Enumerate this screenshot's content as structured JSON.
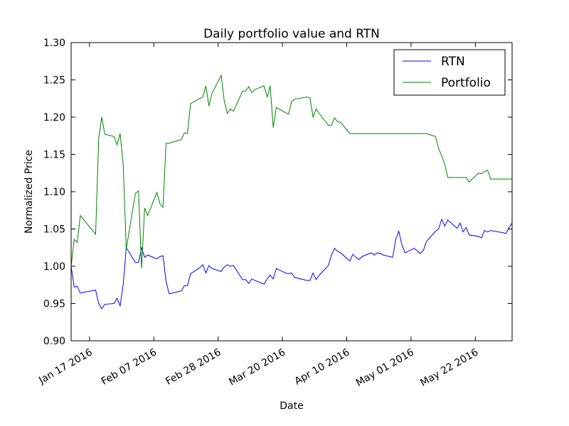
{
  "chart_data": {
    "type": "line",
    "title": "Daily portfolio value and RTN",
    "xlabel": "Date",
    "ylabel": "Normalized Price",
    "ylim": [
      0.9,
      1.3
    ],
    "xlim": [
      "2016-01-11",
      "2016-06-03"
    ],
    "yticks": [
      0.9,
      0.95,
      1.0,
      1.05,
      1.1,
      1.15,
      1.2,
      1.25,
      1.3
    ],
    "ytick_labels": [
      "0.90",
      "0.95",
      "1.00",
      "1.05",
      "1.10",
      "1.15",
      "1.20",
      "1.25",
      "1.30"
    ],
    "xticks": [
      "2016-01-17",
      "2016-02-07",
      "2016-02-28",
      "2016-03-20",
      "2016-04-10",
      "2016-05-01",
      "2016-05-22"
    ],
    "xtick_labels": [
      "Jan 17 2016",
      "Feb 07 2016",
      "Feb 28 2016",
      "Mar 20 2016",
      "Apr 10 2016",
      "May 01 2016",
      "May 22 2016"
    ],
    "grid": false,
    "legend_position": "top-right",
    "series": [
      {
        "name": "RTN",
        "color": "#0000ff",
        "x": [
          "2016-01-11",
          "2016-01-12",
          "2016-01-13",
          "2016-01-14",
          "2016-01-15",
          "2016-01-19",
          "2016-01-20",
          "2016-01-21",
          "2016-01-22",
          "2016-01-25",
          "2016-01-26",
          "2016-01-27",
          "2016-01-28",
          "2016-01-29",
          "2016-02-01",
          "2016-02-02",
          "2016-02-03",
          "2016-02-04",
          "2016-02-05",
          "2016-02-08",
          "2016-02-09",
          "2016-02-10",
          "2016-02-11",
          "2016-02-12",
          "2016-02-16",
          "2016-02-17",
          "2016-02-18",
          "2016-02-19",
          "2016-02-22",
          "2016-02-23",
          "2016-02-24",
          "2016-02-25",
          "2016-02-26",
          "2016-02-29",
          "2016-03-01",
          "2016-03-02",
          "2016-03-03",
          "2016-03-04",
          "2016-03-07",
          "2016-03-08",
          "2016-03-09",
          "2016-03-10",
          "2016-03-11",
          "2016-03-14",
          "2016-03-15",
          "2016-03-16",
          "2016-03-17",
          "2016-03-18",
          "2016-03-21",
          "2016-03-22",
          "2016-03-23",
          "2016-03-24",
          "2016-03-28",
          "2016-03-29",
          "2016-03-30",
          "2016-03-31",
          "2016-04-01",
          "2016-04-04",
          "2016-04-05",
          "2016-04-06",
          "2016-04-07",
          "2016-04-08",
          "2016-04-11",
          "2016-04-12",
          "2016-04-13",
          "2016-04-14",
          "2016-04-15",
          "2016-04-18",
          "2016-04-19",
          "2016-04-20",
          "2016-04-21",
          "2016-04-22",
          "2016-04-25",
          "2016-04-26",
          "2016-04-27",
          "2016-04-28",
          "2016-04-29",
          "2016-05-02",
          "2016-05-03",
          "2016-05-04",
          "2016-05-05",
          "2016-05-06",
          "2016-05-09",
          "2016-05-10",
          "2016-05-11",
          "2016-05-12",
          "2016-05-13",
          "2016-05-16",
          "2016-05-17",
          "2016-05-18",
          "2016-05-19",
          "2016-05-20",
          "2016-05-23",
          "2016-05-24",
          "2016-05-25",
          "2016-05-26",
          "2016-05-27",
          "2016-05-31",
          "2016-06-01",
          "2016-06-02",
          "2016-06-03"
        ],
        "y": [
          1.0,
          0.972,
          0.973,
          0.964,
          0.965,
          0.968,
          0.95,
          0.943,
          0.949,
          0.95,
          0.957,
          0.947,
          0.975,
          1.025,
          1.005,
          1.005,
          1.025,
          1.012,
          1.015,
          1.01,
          1.013,
          1.014,
          0.98,
          0.963,
          0.967,
          0.974,
          0.974,
          0.99,
          0.998,
          1.002,
          0.991,
          1.001,
          0.997,
          0.993,
          0.999,
          1.002,
          1.0,
          1.001,
          0.982,
          0.982,
          0.977,
          0.983,
          0.981,
          0.976,
          0.983,
          0.988,
          0.983,
          0.997,
          0.991,
          0.99,
          0.991,
          0.985,
          0.981,
          0.981,
          0.991,
          0.982,
          0.988,
          1.001,
          1.015,
          1.024,
          1.02,
          1.018,
          1.007,
          1.016,
          1.012,
          1.009,
          1.013,
          1.018,
          1.015,
          1.018,
          1.017,
          1.015,
          1.012,
          1.036,
          1.047,
          1.029,
          1.018,
          1.024,
          1.021,
          1.017,
          1.021,
          1.033,
          1.047,
          1.05,
          1.063,
          1.054,
          1.062,
          1.051,
          1.058,
          1.046,
          1.052,
          1.042,
          1.04,
          1.038,
          1.048,
          1.046,
          1.048,
          1.045,
          1.044,
          1.052,
          1.058
        ]
      },
      {
        "name": "Portfolio",
        "color": "#008000",
        "x": [
          "2016-01-11",
          "2016-01-12",
          "2016-01-13",
          "2016-01-14",
          "2016-01-15",
          "2016-01-19",
          "2016-01-20",
          "2016-01-21",
          "2016-01-22",
          "2016-01-25",
          "2016-01-26",
          "2016-01-27",
          "2016-01-28",
          "2016-01-29",
          "2016-02-01",
          "2016-02-02",
          "2016-02-03",
          "2016-02-04",
          "2016-02-05",
          "2016-02-08",
          "2016-02-09",
          "2016-02-10",
          "2016-02-11",
          "2016-02-12",
          "2016-02-16",
          "2016-02-17",
          "2016-02-18",
          "2016-02-19",
          "2016-02-22",
          "2016-02-23",
          "2016-02-24",
          "2016-02-25",
          "2016-02-26",
          "2016-02-29",
          "2016-03-01",
          "2016-03-02",
          "2016-03-03",
          "2016-03-04",
          "2016-03-07",
          "2016-03-08",
          "2016-03-09",
          "2016-03-10",
          "2016-03-11",
          "2016-03-14",
          "2016-03-15",
          "2016-03-16",
          "2016-03-17",
          "2016-03-18",
          "2016-03-21",
          "2016-03-22",
          "2016-03-23",
          "2016-03-24",
          "2016-03-28",
          "2016-03-29",
          "2016-03-30",
          "2016-03-31",
          "2016-04-01",
          "2016-04-04",
          "2016-04-05",
          "2016-04-06",
          "2016-04-07",
          "2016-04-08",
          "2016-04-11",
          "2016-04-12",
          "2016-04-13",
          "2016-04-14",
          "2016-04-15",
          "2016-04-18",
          "2016-04-19",
          "2016-04-20",
          "2016-04-21",
          "2016-04-22",
          "2016-04-25",
          "2016-04-26",
          "2016-04-27",
          "2016-04-28",
          "2016-04-29",
          "2016-05-02",
          "2016-05-03",
          "2016-05-04",
          "2016-05-05",
          "2016-05-06",
          "2016-05-09",
          "2016-05-10",
          "2016-05-11",
          "2016-05-12",
          "2016-05-13",
          "2016-05-16",
          "2016-05-17",
          "2016-05-18",
          "2016-05-19",
          "2016-05-20",
          "2016-05-23",
          "2016-05-24",
          "2016-05-25",
          "2016-05-26",
          "2016-05-27",
          "2016-05-31",
          "2016-06-01",
          "2016-06-02",
          "2016-06-03"
        ],
        "y": [
          1.0,
          1.036,
          1.032,
          1.068,
          1.063,
          1.043,
          1.171,
          1.2,
          1.177,
          1.174,
          1.163,
          1.178,
          1.137,
          1.023,
          1.098,
          1.101,
          0.997,
          1.078,
          1.068,
          1.099,
          1.084,
          1.079,
          1.165,
          1.165,
          1.17,
          1.179,
          1.178,
          1.218,
          1.225,
          1.227,
          1.242,
          1.215,
          1.232,
          1.256,
          1.222,
          1.205,
          1.211,
          1.208,
          1.235,
          1.235,
          1.241,
          1.233,
          1.237,
          1.242,
          1.227,
          1.242,
          1.186,
          1.213,
          1.206,
          1.204,
          1.221,
          1.224,
          1.227,
          1.226,
          1.2,
          1.211,
          1.205,
          1.189,
          1.189,
          1.199,
          1.194,
          1.193,
          1.178,
          1.178,
          1.178,
          1.178,
          1.178,
          1.178,
          1.178,
          1.178,
          1.178,
          1.178,
          1.178,
          1.178,
          1.178,
          1.178,
          1.178,
          1.178,
          1.178,
          1.178,
          1.178,
          1.178,
          1.174,
          1.158,
          1.148,
          1.137,
          1.119,
          1.119,
          1.119,
          1.119,
          1.119,
          1.113,
          1.125,
          1.124,
          1.127,
          1.129,
          1.117,
          1.117,
          1.117,
          1.117,
          1.117
        ]
      }
    ]
  }
}
